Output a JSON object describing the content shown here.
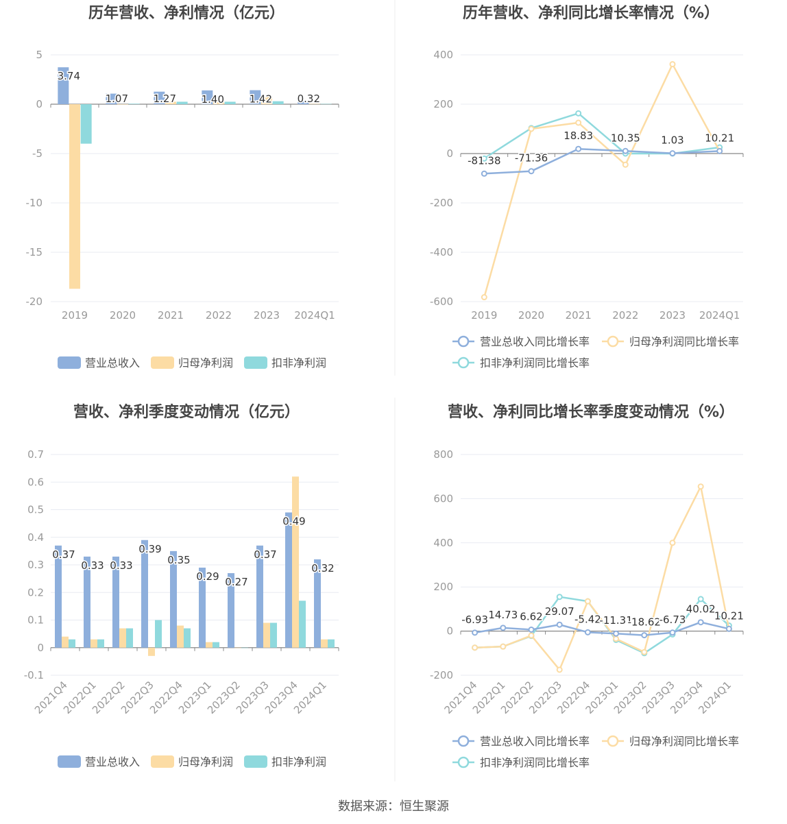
{
  "colors": {
    "revenue": "#8eafdc",
    "parent_profit": "#fcdca4",
    "deducted_profit": "#8fd9dd",
    "axis": "#888888",
    "grid": "#e8ebf2",
    "tick": "#999999",
    "title": "#454545",
    "label": "#333333"
  },
  "source": "数据来源：恒生聚源",
  "chart_data": [
    {
      "type": "bar",
      "title": "历年营收、净利情况（亿元）",
      "categories": [
        "2019",
        "2020",
        "2021",
        "2022",
        "2023",
        "2024Q1"
      ],
      "yticks": [
        "5",
        "0",
        "-5",
        "-10",
        "-15",
        "-20"
      ],
      "ylim": [
        -20,
        5
      ],
      "series": [
        {
          "name": "营业总收入",
          "values": [
            3.74,
            1.07,
            1.27,
            1.4,
            1.42,
            0.32
          ]
        },
        {
          "name": "归母净利润",
          "values": [
            -18.7,
            0.0,
            0.25,
            0.2,
            0.75,
            0.03
          ]
        },
        {
          "name": "扣非净利润",
          "values": [
            -4.0,
            0.05,
            0.25,
            0.25,
            0.3,
            0.03
          ]
        }
      ],
      "data_labels": [
        "3.74",
        "1.07",
        "1.27",
        "1.40",
        "1.42",
        "0.32"
      ]
    },
    {
      "type": "line",
      "title": "历年营收、净利同比增长率情况（%）",
      "categories": [
        "2019",
        "2020",
        "2021",
        "2022",
        "2023",
        "2024Q1"
      ],
      "yticks": [
        "400",
        "200",
        "0",
        "-200",
        "-400",
        "-600"
      ],
      "ylim": [
        -600,
        400
      ],
      "series": [
        {
          "name": "营业总收入同比增长率",
          "values": [
            -81.38,
            -71.36,
            18.83,
            10.35,
            1.03,
            10.21
          ]
        },
        {
          "name": "归母净利润同比增长率",
          "values": [
            -582,
            100,
            125,
            -45,
            362,
            10
          ]
        },
        {
          "name": "扣非净利润同比增长率",
          "values": [
            -20,
            103,
            163,
            0,
            0,
            25
          ]
        }
      ],
      "data_labels": [
        "-81.38",
        "-71.36",
        "18.83",
        "10.35",
        "1.03",
        "10.21"
      ]
    },
    {
      "type": "bar",
      "title": "营收、净利季度变动情况（亿元）",
      "categories": [
        "2021Q4",
        "2022Q1",
        "2022Q2",
        "2022Q3",
        "2022Q4",
        "2023Q1",
        "2023Q2",
        "2023Q3",
        "2023Q4",
        "2024Q1"
      ],
      "yticks": [
        "0.7",
        "0.6",
        "0.5",
        "0.4",
        "0.3",
        "0.2",
        "0.1",
        "0",
        "-0.1"
      ],
      "ylim": [
        -0.1,
        0.7
      ],
      "series": [
        {
          "name": "营业总收入",
          "values": [
            0.37,
            0.33,
            0.33,
            0.39,
            0.35,
            0.29,
            0.27,
            0.37,
            0.49,
            0.32
          ]
        },
        {
          "name": "归母净利润",
          "values": [
            0.04,
            0.03,
            0.07,
            -0.03,
            0.08,
            0.02,
            0.0,
            0.09,
            0.62,
            0.03
          ]
        },
        {
          "name": "扣非净利润",
          "values": [
            0.03,
            0.03,
            0.07,
            0.1,
            0.07,
            0.02,
            0.0,
            0.09,
            0.17,
            0.03
          ]
        }
      ],
      "data_labels": [
        "0.37",
        "0.33",
        "0.33",
        "0.39",
        "0.35",
        "0.29",
        "0.27",
        "0.37",
        "0.49",
        "0.32"
      ]
    },
    {
      "type": "line",
      "title": "营收、净利同比增长率季度变动情况（%）",
      "categories": [
        "2021Q4",
        "2022Q1",
        "2022Q2",
        "2022Q3",
        "2022Q4",
        "2023Q1",
        "2023Q2",
        "2023Q3",
        "2023Q4",
        "2024Q1"
      ],
      "yticks": [
        "800",
        "600",
        "400",
        "200",
        "0",
        "-200"
      ],
      "ylim": [
        -200,
        800
      ],
      "series": [
        {
          "name": "营业总收入同比增长率",
          "values": [
            -6.93,
            14.73,
            6.62,
            29.07,
            -5.42,
            -11.31,
            -18.62,
            -6.73,
            40.02,
            10.21
          ]
        },
        {
          "name": "归母净利润同比增长率",
          "values": [
            -75,
            -70,
            -20,
            -175,
            135,
            -35,
            -95,
            400,
            655,
            10
          ]
        },
        {
          "name": "扣非净利润同比增长率",
          "values": [
            -75,
            -70,
            -22,
            155,
            135,
            -40,
            -100,
            -15,
            145,
            25
          ]
        }
      ],
      "data_labels": [
        "-6.93",
        "14.73",
        "6.62",
        "29.07",
        "-5.42",
        "-11.31",
        "-18.62",
        "-6.73",
        "40.02",
        "10.21"
      ]
    }
  ]
}
